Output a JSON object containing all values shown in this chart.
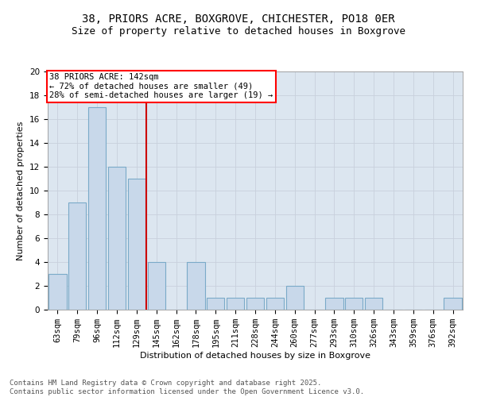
{
  "title": "38, PRIORS ACRE, BOXGROVE, CHICHESTER, PO18 0ER",
  "subtitle": "Size of property relative to detached houses in Boxgrove",
  "xlabel": "Distribution of detached houses by size in Boxgrove",
  "ylabel": "Number of detached properties",
  "footnote1": "Contains HM Land Registry data © Crown copyright and database right 2025.",
  "footnote2": "Contains public sector information licensed under the Open Government Licence v3.0.",
  "annotation_line1": "38 PRIORS ACRE: 142sqm",
  "annotation_line2": "← 72% of detached houses are smaller (49)",
  "annotation_line3": "28% of semi-detached houses are larger (19) →",
  "bar_labels": [
    "63sqm",
    "79sqm",
    "96sqm",
    "112sqm",
    "129sqm",
    "145sqm",
    "162sqm",
    "178sqm",
    "195sqm",
    "211sqm",
    "228sqm",
    "244sqm",
    "260sqm",
    "277sqm",
    "293sqm",
    "310sqm",
    "326sqm",
    "343sqm",
    "359sqm",
    "376sqm",
    "392sqm"
  ],
  "bar_values": [
    3,
    9,
    17,
    12,
    11,
    4,
    0,
    4,
    1,
    1,
    1,
    1,
    2,
    0,
    1,
    1,
    1,
    0,
    0,
    0,
    1
  ],
  "bar_color": "#c8d8ea",
  "bar_edgecolor": "#7aaac8",
  "vline_x_index": 4.5,
  "vline_color": "#cc0000",
  "ylim": [
    0,
    20
  ],
  "yticks": [
    0,
    2,
    4,
    6,
    8,
    10,
    12,
    14,
    16,
    18,
    20
  ],
  "grid_color": "#c8d0dc",
  "bg_color": "#dce6f0",
  "title_fontsize": 10,
  "subtitle_fontsize": 9,
  "axis_label_fontsize": 8,
  "tick_fontsize": 7.5,
  "footnote_fontsize": 6.5,
  "annotation_fontsize": 7.5
}
